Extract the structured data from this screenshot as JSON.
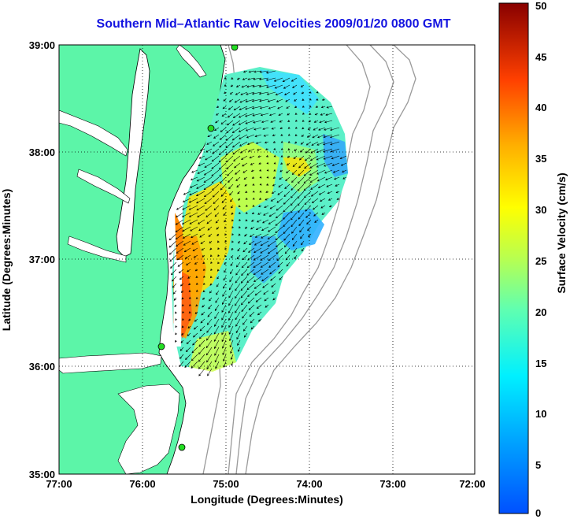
{
  "title": "Southern Mid–Atlantic Raw Velocities 2009/01/20 0800 GMT",
  "xlabel": "Longitude (Degrees:Minutes)",
  "ylabel": "Latitude (Degrees:Minutes)",
  "colorbar_label": "Surface Velocity (cm/s)",
  "x_ticks": [
    "77:00",
    "76:00",
    "75:00",
    "74:00",
    "73:00",
    "72:00"
  ],
  "y_ticks": [
    "39:00",
    "38:00",
    "37:00",
    "36:00",
    "35:00"
  ],
  "colorbar_ticks": [
    "50",
    "45",
    "40",
    "35",
    "30",
    "25",
    "20",
    "15",
    "10",
    "5",
    "0"
  ],
  "colors": {
    "land": "#5cf5a8",
    "title": "#1414e0",
    "bathymetry": "#9a9a9a",
    "station": "#22dd22"
  },
  "chart_data": {
    "type": "map",
    "x_range": [
      -77,
      -72
    ],
    "y_range": [
      35,
      39
    ],
    "color_range": [
      0,
      50
    ],
    "grid": true
  }
}
